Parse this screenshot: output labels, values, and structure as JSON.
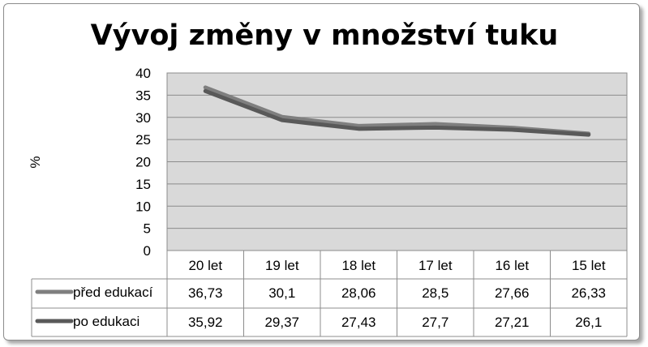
{
  "chart_data": {
    "type": "line",
    "title": "Vývoj změny v množství tuku",
    "ylabel": "%",
    "xlabel": "",
    "categories": [
      "20 let",
      "19 let",
      "18 let",
      "17 let",
      "16 let",
      "15 let"
    ],
    "ylim": [
      0,
      40
    ],
    "yticks": [
      "0",
      "5",
      "10",
      "15",
      "20",
      "25",
      "30",
      "35",
      "40"
    ],
    "grid": true,
    "legend": "data-table",
    "series": [
      {
        "name": "před edukací",
        "values": [
          36.73,
          30.1,
          28.06,
          28.5,
          27.66,
          26.33
        ],
        "labels": [
          "36,73",
          "30,1",
          "28,06",
          "28,5",
          "27,66",
          "26,33"
        ],
        "color": "#7f7f7f"
      },
      {
        "name": "po edukaci",
        "values": [
          35.92,
          29.37,
          27.43,
          27.7,
          27.21,
          26.1
        ],
        "labels": [
          "35,92",
          "29,37",
          "27,43",
          "27,7",
          "27,21",
          "26,1"
        ],
        "color": "#595959"
      }
    ],
    "plot_background": "#d9d9d9"
  }
}
